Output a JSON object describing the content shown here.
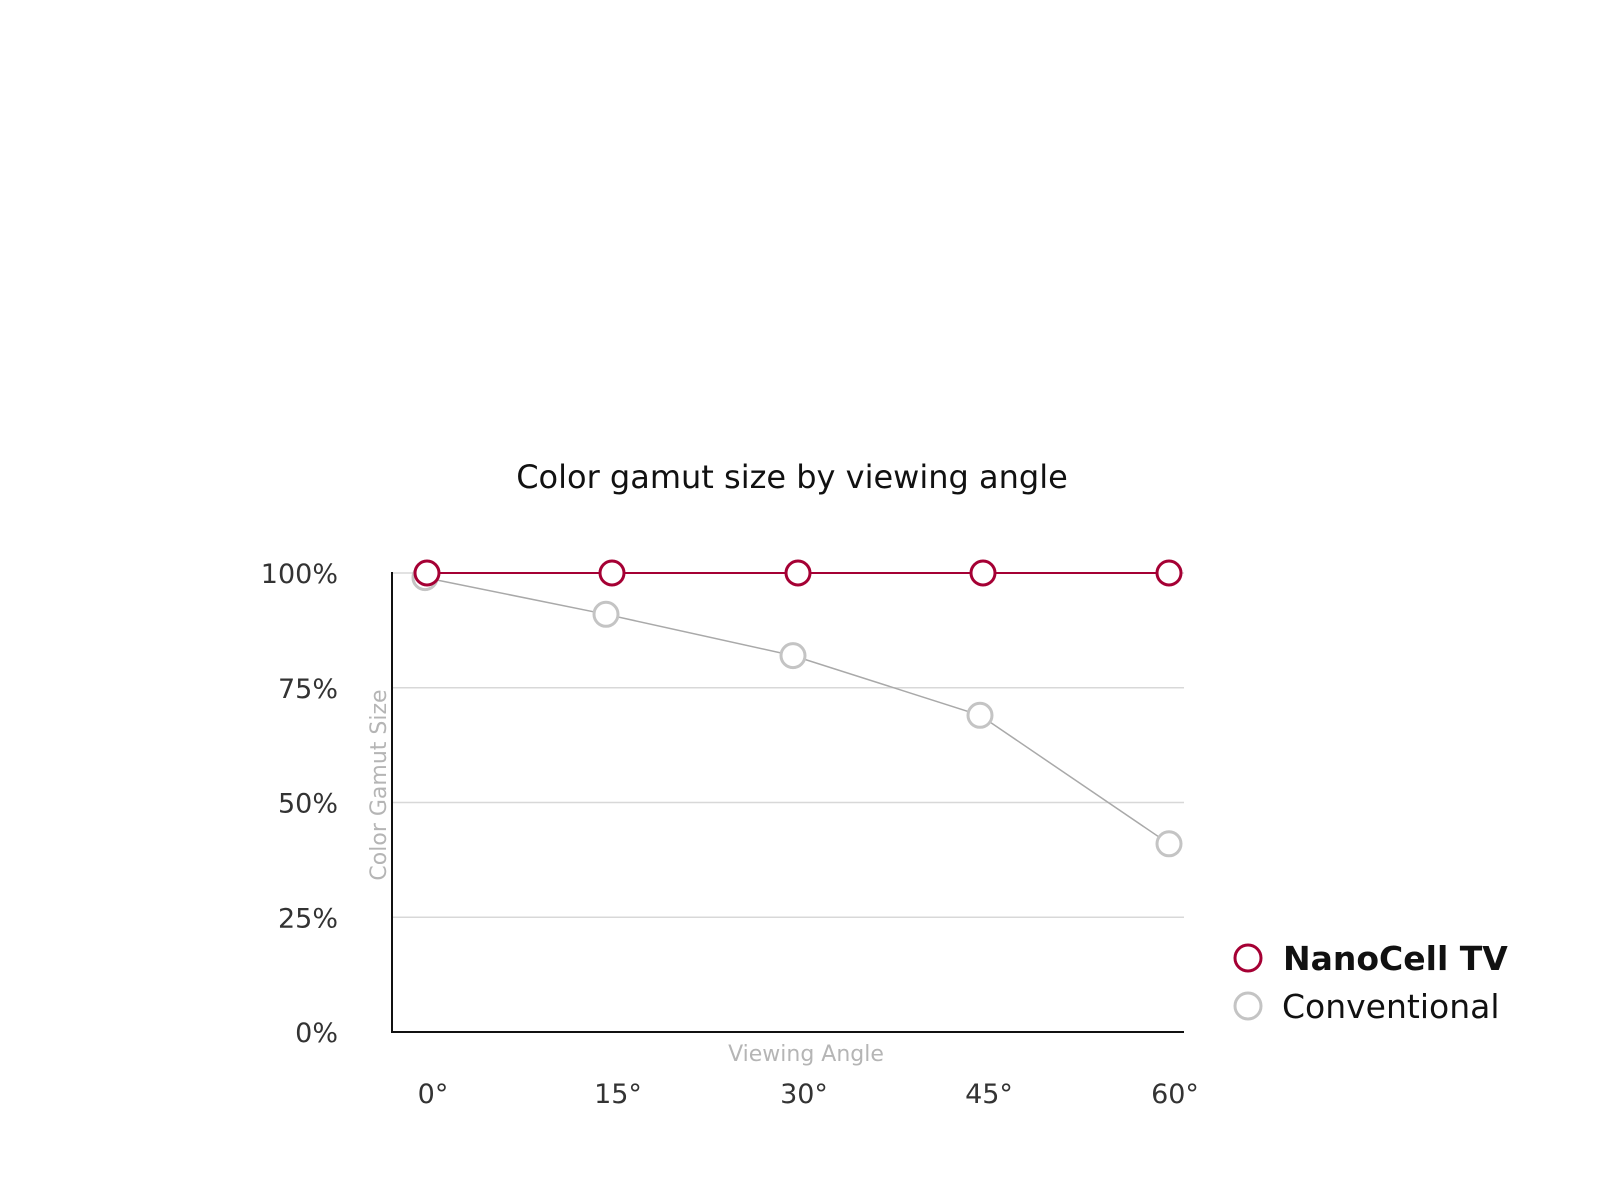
{
  "chart_data": {
    "type": "line",
    "title": "Color gamut size by viewing angle",
    "xlabel": "Viewing Angle",
    "ylabel": "Color Gamut Size",
    "categories": [
      "0°",
      "15°",
      "30°",
      "45°",
      "60°"
    ],
    "y_ticks": [
      "0%",
      "25%",
      "50%",
      "75%",
      "100%"
    ],
    "ylim": [
      0,
      100
    ],
    "grid": "horizontal",
    "legend_position": "bottom-right",
    "series": [
      {
        "name": "NanoCell TV",
        "values": [
          100,
          100,
          100,
          100,
          100
        ],
        "color": "#a50034"
      },
      {
        "name": "Conventional",
        "values": [
          99,
          91,
          82,
          69,
          41
        ],
        "color": "#c4c4c4"
      }
    ]
  }
}
